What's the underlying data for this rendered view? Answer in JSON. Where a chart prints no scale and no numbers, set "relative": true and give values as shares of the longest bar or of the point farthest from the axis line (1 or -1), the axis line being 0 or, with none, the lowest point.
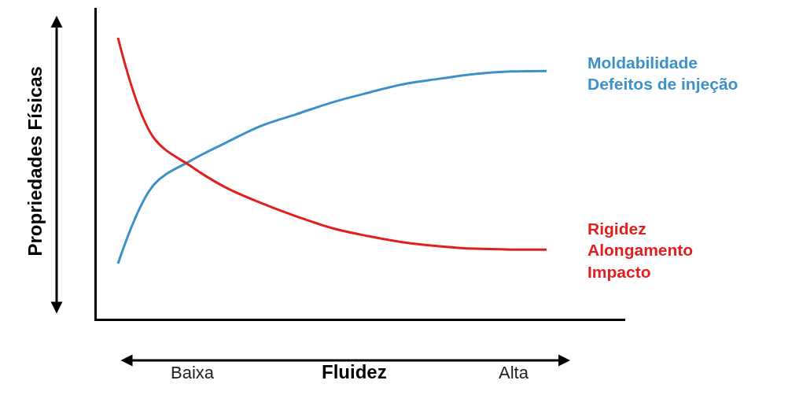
{
  "chart_data": {
    "type": "line",
    "relative": true,
    "xlabel": "Fluidez",
    "ylabel": "Propriedades Físicas",
    "categories": [
      null,
      null,
      null,
      null,
      null,
      null,
      null,
      null,
      null,
      null,
      null,
      null,
      null
    ],
    "series": [
      {
        "name": "Moldabilidade\nDefeitos de injeção",
        "color": "#3c92c8",
        "values": [
          0.196,
          0.476,
          0.56,
          0.625,
          0.686,
          0.728,
          0.77,
          0.804,
          0.835,
          0.854,
          0.871,
          0.88,
          0.882
        ]
      },
      {
        "name": "Rigidez\nAlongamento\nImpacto",
        "color": "#e0201e",
        "values": [
          1.0,
          0.644,
          0.546,
          0.468,
          0.412,
          0.364,
          0.322,
          0.294,
          0.272,
          0.258,
          0.249,
          0.246,
          0.246
        ]
      }
    ],
    "annotations": [
      "Baixa",
      "Alta"
    ],
    "legend": false,
    "marker": "none",
    "line_style": "solid"
  }
}
